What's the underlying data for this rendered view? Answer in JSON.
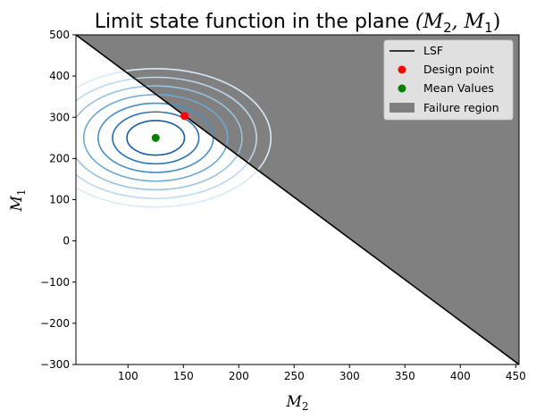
{
  "chart_data": {
    "type": "line",
    "title_text": "Limit state function in the plane ",
    "title_math": "(M",
    "title_math_sub1": "2",
    "title_math_mid": ", M",
    "title_math_sub2": "1",
    "title_math_end": ")",
    "xlabel_main": "M",
    "xlabel_sub": "2",
    "ylabel_main": "M",
    "ylabel_sub": "1",
    "xlim": [
      53,
      453
    ],
    "ylim": [
      -300,
      500
    ],
    "x_ticks": [
      100,
      150,
      200,
      250,
      300,
      350,
      400,
      450
    ],
    "y_ticks": [
      -300,
      -200,
      -100,
      0,
      100,
      200,
      300,
      400,
      500
    ],
    "y_tick_labels": [
      "−300",
      "−200",
      "−100",
      "0",
      "100",
      "200",
      "300",
      "400",
      "500"
    ],
    "grid": false,
    "legend_position": "top-right",
    "lsf": {
      "name": "LSF",
      "color": "#000000",
      "x": [
        53,
        453
      ],
      "y": [
        500,
        -300
      ]
    },
    "failure_region": {
      "name": "Failure region",
      "color": "#808080"
    },
    "design_point": {
      "name": "Design point",
      "color": "#ff0000",
      "x": 151,
      "y": 303
    },
    "mean_values": {
      "name": "Mean Values",
      "color": "#008000",
      "x": 125,
      "y": 250
    },
    "contours": {
      "center": [
        125,
        250
      ],
      "semi_axes": [
        {
          "rx": 26,
          "ry": 42,
          "color": "#1a5a9e"
        },
        {
          "rx": 39,
          "ry": 63,
          "color": "#2b72b0"
        },
        {
          "rx": 52,
          "ry": 84,
          "color": "#4a8fc2"
        },
        {
          "rx": 65,
          "ry": 105,
          "color": "#6fa8d2"
        },
        {
          "rx": 78,
          "ry": 126,
          "color": "#97c2e0"
        },
        {
          "rx": 91,
          "ry": 147,
          "color": "#bcd8ec"
        },
        {
          "rx": 104,
          "ry": 168,
          "color": "#dbe9f5"
        }
      ]
    }
  }
}
